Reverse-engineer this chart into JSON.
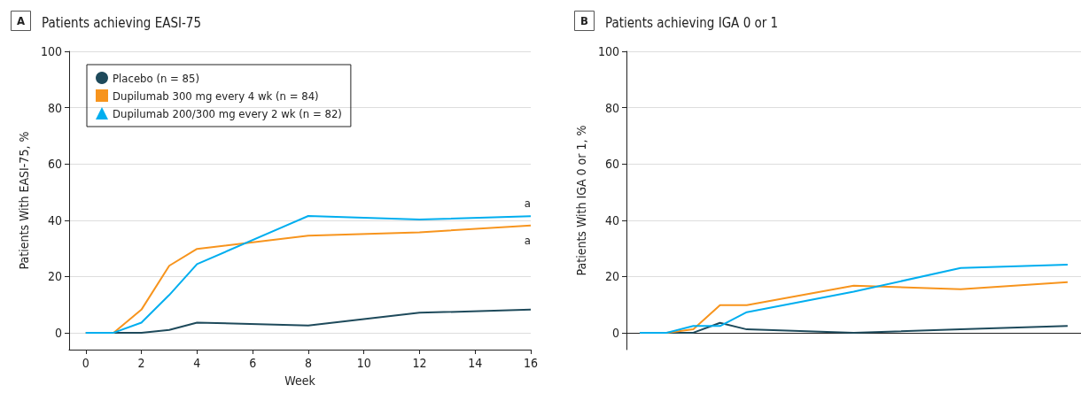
{
  "chart_data": [
    {
      "type": "line",
      "title": "Patients achieving EASI-75",
      "annotations": [
        "A",
        {
          "text": "a",
          "x": 16,
          "y": 41.4
        },
        {
          "text": "a",
          "x": 16,
          "y": 38.1
        }
      ],
      "xlabel": "Week",
      "ylabel": "Patients With EASI-75, %",
      "x": [
        0,
        1,
        2,
        3,
        4,
        8,
        12,
        16
      ],
      "series": [
        {
          "name": "Placebo (n = 85)",
          "color": "#1e4a5b",
          "values": [
            0,
            0,
            0,
            1,
            3.6,
            2.6,
            7.1,
            8.2
          ]
        },
        {
          "name": "Dupilumab 300 mg every 4 wk (n = 84)",
          "color": "#f7941d",
          "values": [
            0,
            0,
            8.2,
            23.8,
            29.8,
            34.5,
            35.7,
            38.1
          ]
        },
        {
          "name": "Dupilumab 200/300 mg every 2 wk (n = 82)",
          "color": "#00aeef",
          "values": [
            0,
            0,
            3.6,
            13.4,
            24.4,
            41.5,
            40.2,
            41.4
          ]
        }
      ],
      "xlim": [
        -0.6,
        16
      ],
      "xticks": [
        0,
        2,
        4,
        6,
        8,
        10,
        12,
        14,
        16
      ],
      "ylim": [
        -6,
        100
      ],
      "yticks": [
        0,
        20,
        40,
        60,
        80,
        100
      ],
      "grid": "y",
      "legend": "top left"
    },
    {
      "type": "line",
      "title": "Patients achieving IGA 0 or 1",
      "annotations": [
        "B"
      ],
      "ylabel": "Patients With IGA 0 or 1, %",
      "categories": [
        null,
        null,
        null,
        null,
        null,
        null,
        null,
        null,
        null,
        null,
        null,
        null,
        null,
        null,
        null,
        null,
        null
      ],
      "series": [
        {
          "color": "#1e4a5b",
          "values": [
            0,
            0,
            0,
            3.5,
            1.2,
            null,
            null,
            null,
            0,
            null,
            null,
            null,
            1.2,
            null,
            null,
            null,
            2.4
          ]
        },
        {
          "color": "#f7941d",
          "values": [
            0,
            0,
            1.2,
            9.8,
            9.8,
            null,
            null,
            null,
            16.7,
            null,
            null,
            null,
            15.5,
            null,
            null,
            null,
            18
          ]
        },
        {
          "color": "#00aeef",
          "values": [
            0,
            0,
            2.4,
            2.4,
            7.3,
            null,
            null,
            null,
            14.6,
            null,
            null,
            null,
            23,
            null,
            null,
            null,
            24.2
          ]
        }
      ],
      "ylim": [
        -6,
        100
      ],
      "yticks": [
        0,
        20,
        40,
        60,
        80,
        100
      ],
      "grid": "y",
      "tick_labels": "y"
    }
  ]
}
